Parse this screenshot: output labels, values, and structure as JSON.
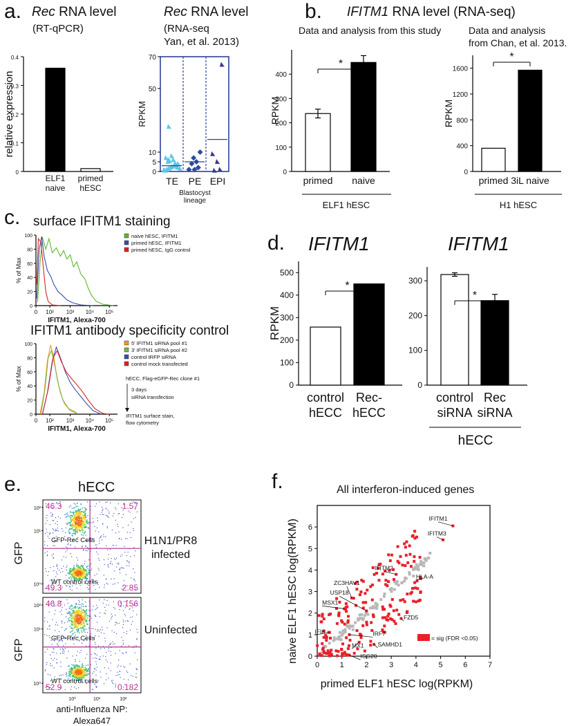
{
  "panel_labels": [
    "a.",
    "b.",
    "c.",
    "d.",
    "e.",
    "f."
  ],
  "a": {
    "left_title_1": "Rec",
    "left_title_2": " RNA level",
    "left_subtitle": "(RT-qPCR)",
    "right_title_1": "Rec",
    "right_title_2": " RNA level",
    "right_sub_1": "(RNA-seq",
    "right_sub_2": "Yan, et al. 2013)",
    "right_xlabel": "Blastocyst\nlineage"
  },
  "b": {
    "title_1": "IFITM1",
    "title_2": " RNA level (RNA-seq)",
    "left_note": "Data and analysis from this study",
    "right_note_1": "Data and analysis",
    "right_note_2": "from Chan, et al. 2013.",
    "left_group": "ELF1 hESC",
    "right_group": "H1 hESC"
  },
  "c": {
    "top_title": "surface IFITM1 staining",
    "bottom_title": "IFITM1 antibody specificity control",
    "ylabel": "% of Max",
    "xlabel": "IFITM1, Alexa-700",
    "xticks": [
      "0",
      "10²",
      "10³",
      "10⁴",
      "10⁵"
    ],
    "yticks": [
      "0",
      "20",
      "40",
      "60",
      "80",
      "100"
    ],
    "top_legend": [
      {
        "label": "naive hESC, IFITM1",
        "color": "#5cb82e"
      },
      {
        "label": "primed hESC, IFITM1",
        "color": "#3a4ea8"
      },
      {
        "label": "primed hESC, IgG control",
        "color": "#e02020"
      }
    ],
    "bottom_legend": [
      {
        "label": "5' IFITM1 siRNA pool #1",
        "color": "#f09a20"
      },
      {
        "label": "3' IFITM1 siRNA pool #2",
        "color": "#7cb342"
      },
      {
        "label": "control tRFP siRNA",
        "color": "#3a4ea8"
      },
      {
        "label": "control mock transfected",
        "color": "#e02020"
      }
    ],
    "workflow": [
      "hECC, Flag-eGFP-Rec clone #1",
      "3 days",
      "siRNA transfection",
      "IFITM1 surface stain,",
      "flow cytometry"
    ]
  },
  "d": {
    "left_title": "IFITM1",
    "right_title": "IFITM1",
    "group": "hECC"
  },
  "e": {
    "title": "hECC",
    "ylabel": "GFP",
    "xlabel_1": "anti-Influenza NP:",
    "xlabel_2": "Alexa647",
    "upper_label": "H1N1/PR8\ninfected",
    "lower_label": "Uninfected",
    "pop_top": "GFP-Rec Cells",
    "pop_bottom": "WT control cells",
    "top_quadrants": [
      "46.3",
      "1.57",
      "49.3",
      "2.85"
    ],
    "bottom_quadrants": [
      "46.8",
      "0.156",
      "52.9",
      "0.182"
    ],
    "yticks": [
      "10²",
      "10¹",
      "10⁰"
    ],
    "xticks": [
      "10⁰",
      "10¹",
      "10²"
    ]
  },
  "f": {
    "title": "All interferon-induced genes",
    "legend": "= sig (FDR <0.05)",
    "sig_color": "#e8202a",
    "nonsig_color": "#b8b8b8"
  },
  "chart_data": [
    {
      "id": "a-left",
      "type": "bar",
      "categories": [
        "ELF1\nnaive",
        "primed\nhESC"
      ],
      "values": [
        0.36,
        0.01
      ],
      "colors": [
        "#000000",
        "#ffffff"
      ],
      "ylabel": "relative expression",
      "ylim": [
        0,
        0.4
      ],
      "yticks": [
        "0",
        "0.1",
        "0.2",
        "0.3",
        "0.4"
      ]
    },
    {
      "id": "a-right",
      "type": "scatter",
      "categories": [
        "TE",
        "PE",
        "EPI"
      ],
      "ylabel": "RPKM",
      "ylim": [
        0,
        70
      ],
      "yticks": [
        "0",
        "5",
        "10",
        "50",
        "70"
      ],
      "series": [
        {
          "category": "TE",
          "marker": "triangle",
          "color": "#5bc8e8",
          "y": [
            0.5,
            1,
            1.5,
            2,
            2.5,
            3,
            3.5,
            4,
            5,
            5.5,
            6,
            7,
            8,
            2,
            1.5,
            0.8,
            4,
            6,
            26
          ],
          "x": [
            0.1,
            0.2,
            0.3,
            0.4,
            0.5,
            0.6,
            0.7,
            0.8,
            0.25,
            0.35,
            0.55,
            0.15,
            0.45,
            0.75,
            0.9,
            0.05,
            0.65,
            0.3,
            0.3
          ]
        },
        {
          "category": "PE",
          "marker": "diamond",
          "color": "#2e4aa0",
          "y": [
            1,
            1,
            2,
            4,
            5,
            7,
            10
          ],
          "x": [
            0.2,
            0.5,
            0.7,
            0.35,
            0.6,
            0.45,
            0.8
          ]
        },
        {
          "category": "EPI",
          "marker": "triangle",
          "color": "#3a3a8f",
          "y": [
            0.5,
            1,
            5,
            9,
            65
          ],
          "x": [
            0.3,
            0.6,
            0.45,
            0.2,
            0.7
          ]
        }
      ],
      "means": [
        3,
        5,
        18
      ]
    },
    {
      "id": "b-left",
      "type": "bar",
      "categories": [
        "primed",
        "naive"
      ],
      "values": [
        238,
        448
      ],
      "errors": [
        18,
        28
      ],
      "colors": [
        "#ffffff",
        "#000000"
      ],
      "ylabel": "RPKM",
      "ylim": [
        0,
        500
      ],
      "yticks": [
        "0",
        "100",
        "200",
        "300",
        "400"
      ],
      "significance": "*"
    },
    {
      "id": "b-right",
      "type": "bar",
      "categories": [
        "primed",
        "3iL naive"
      ],
      "values": [
        360,
        1570
      ],
      "colors": [
        "#ffffff",
        "#000000"
      ],
      "ylabel": "RPKM",
      "ylim": [
        0,
        1800
      ],
      "yticks": [
        "0",
        "400",
        "800",
        "1200",
        "1600"
      ],
      "significance": "*"
    },
    {
      "id": "d-left",
      "type": "bar",
      "categories": [
        "control\nhECC",
        "Rec-\nhECC"
      ],
      "values": [
        258,
        450
      ],
      "colors": [
        "#ffffff",
        "#000000"
      ],
      "ylabel": "RPKM",
      "ylim": [
        0,
        550
      ],
      "yticks": [
        "0",
        "100",
        "200",
        "300",
        "400",
        "500"
      ],
      "significance": "*"
    },
    {
      "id": "d-right",
      "type": "bar",
      "categories": [
        "control\nsiRNA",
        "Rec\nsiRNA"
      ],
      "values": [
        318,
        243
      ],
      "errors": [
        5,
        18
      ],
      "colors": [
        "#ffffff",
        "#000000"
      ],
      "ylim": [
        0,
        340
      ],
      "yticks": [
        "0",
        "100",
        "200",
        "300"
      ],
      "significance": "*"
    },
    {
      "id": "f",
      "type": "scatter",
      "xlabel": "primed ELF1 hESC  log(RPKM)",
      "ylabel": "naive ELF1 hESC  log(RPKM)",
      "xlim": [
        0,
        7
      ],
      "ylim": [
        0,
        7
      ],
      "xticks": [
        "0",
        "1",
        "2",
        "3",
        "4",
        "5",
        "6",
        "7"
      ],
      "yticks": [
        "0",
        "1",
        "2",
        "3",
        "4",
        "5",
        "6"
      ],
      "labeled_genes": [
        {
          "gene": "IFITM1",
          "x": 5.5,
          "y": 6.05
        },
        {
          "gene": "IFITM3",
          "x": 5.1,
          "y": 5.4
        },
        {
          "gene": "IFITM2",
          "x": 3.2,
          "y": 3.8
        },
        {
          "gene": "ZC3HAV1",
          "x": 1.4,
          "y": 2.7
        },
        {
          "gene": "USP18",
          "x": 2.0,
          "y": 2.1
        },
        {
          "gene": "HLA-A",
          "x": 4.2,
          "y": 3.6
        },
        {
          "gene": "MSX1",
          "x": 1.1,
          "y": 2.2
        },
        {
          "gene": "FZD5",
          "x": 3.4,
          "y": 1.75
        },
        {
          "gene": "IFI6",
          "x": 0.5,
          "y": 1.1
        },
        {
          "gene": "IRF7",
          "x": 1.3,
          "y": 1.0
        },
        {
          "gene": "MX1",
          "x": 1.7,
          "y": 0.65
        },
        {
          "gene": "SAMHD1",
          "x": 2.3,
          "y": 0.55
        },
        {
          "gene": "ISG20",
          "x": 1.3,
          "y": 0.05
        }
      ]
    }
  ]
}
